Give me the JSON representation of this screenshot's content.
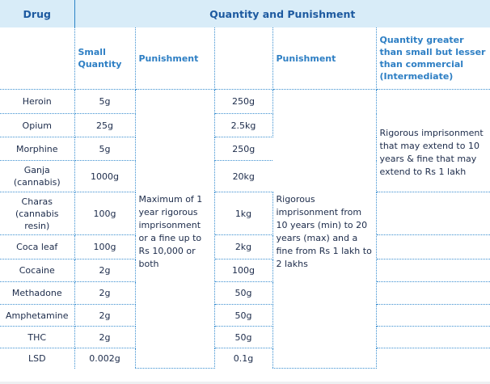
{
  "headers": {
    "drug": "Drug",
    "quantity_and_punishment": "Quantity and Punishment"
  },
  "subheaders": {
    "small_quantity": "Small Quantity",
    "punishment_1": "Punishment",
    "punishment_2": "Punishment",
    "intermediate": "Quantity greater than small but lesser than commercial (Intermediate)"
  },
  "rows": [
    {
      "drug": "Heroin",
      "small": "5g",
      "commercial": "250g"
    },
    {
      "drug": "Opium",
      "small": "25g",
      "commercial": "2.5kg"
    },
    {
      "drug": "Morphine",
      "small": "5g",
      "commercial": "250g"
    },
    {
      "drug": "Ganja (cannabis)",
      "small": "1000g",
      "commercial": "20kg"
    },
    {
      "drug": "Charas (cannabis resin)",
      "small": "100g",
      "commercial": "1kg"
    },
    {
      "drug": "Coca leaf",
      "small": "100g",
      "commercial": "2kg"
    },
    {
      "drug": "Cocaine",
      "small": "2g",
      "commercial": "100g"
    },
    {
      "drug": "Methadone",
      "small": "2g",
      "commercial": "50g"
    },
    {
      "drug": "Amphetamine",
      "small": "2g",
      "commercial": "50g"
    },
    {
      "drug": "THC",
      "small": "2g",
      "commercial": "50g"
    },
    {
      "drug": "LSD",
      "small": "0.002g",
      "commercial": "0.1g"
    }
  ],
  "punishments": {
    "small": "Maximum of 1 year rigorous imprisonment or a fine up to Rs 10,000 or both",
    "commercial": "Rigorous imprisonment from 10 years (min) to 20 years (max) and a fine from Rs 1 lakh to 2 lakhs",
    "intermediate": "Rigorous imprisonment that may extend to 10 years & fine that may extend to Rs 1 lakh"
  }
}
